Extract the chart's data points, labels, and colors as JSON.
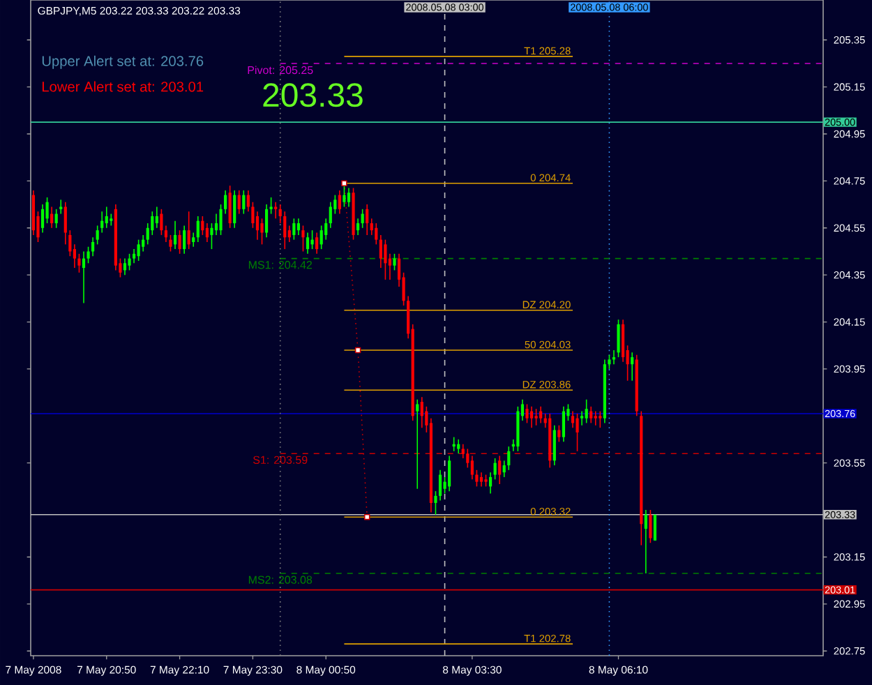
{
  "chart_data": {
    "type": "candlestick",
    "title": "GBPJPY,M5  203.22 203.33 203.22 203.33",
    "annotations": [
      "Upper Alert set at: 203.76",
      "Lower Alert set at: 203.01",
      "203.33"
    ],
    "x": [
      "2008-05-07T19:30",
      "2008-05-07T19:35",
      "2008-05-07T19:40",
      "2008-05-07T19:45",
      "2008-05-07T19:50",
      "2008-05-07T19:55",
      "2008-05-07T20:00",
      "2008-05-07T20:05",
      "2008-05-07T20:10",
      "2008-05-07T20:15",
      "2008-05-07T20:20",
      "2008-05-07T20:25",
      "2008-05-07T20:30",
      "2008-05-07T20:35",
      "2008-05-07T20:40",
      "2008-05-07T20:45",
      "2008-05-07T20:50",
      "2008-05-07T20:55",
      "2008-05-07T21:00",
      "2008-05-07T21:05",
      "2008-05-07T21:10",
      "2008-05-07T21:15",
      "2008-05-07T21:20",
      "2008-05-07T21:25",
      "2008-05-07T21:30",
      "2008-05-07T21:35",
      "2008-05-07T21:40",
      "2008-05-07T21:45",
      "2008-05-07T21:50",
      "2008-05-07T21:55",
      "2008-05-07T22:00",
      "2008-05-07T22:05",
      "2008-05-07T22:10",
      "2008-05-07T22:15",
      "2008-05-07T22:20",
      "2008-05-07T22:25",
      "2008-05-07T22:30",
      "2008-05-07T22:35",
      "2008-05-07T22:40",
      "2008-05-07T22:45",
      "2008-05-07T22:50",
      "2008-05-07T22:55",
      "2008-05-07T23:00",
      "2008-05-07T23:05",
      "2008-05-07T23:10",
      "2008-05-07T23:15",
      "2008-05-07T23:20",
      "2008-05-07T23:25",
      "2008-05-07T23:30",
      "2008-05-07T23:35",
      "2008-05-07T23:40",
      "2008-05-07T23:45",
      "2008-05-07T23:50",
      "2008-05-07T23:55",
      "2008-05-08T00:00",
      "2008-05-08T00:05",
      "2008-05-08T00:10",
      "2008-05-08T00:15",
      "2008-05-08T00:20",
      "2008-05-08T00:25",
      "2008-05-08T00:30",
      "2008-05-08T00:35",
      "2008-05-08T00:40",
      "2008-05-08T00:45",
      "2008-05-08T00:50",
      "2008-05-08T00:55",
      "2008-05-08T01:00",
      "2008-05-08T01:05",
      "2008-05-08T01:10",
      "2008-05-08T01:15",
      "2008-05-08T01:20",
      "2008-05-08T01:25",
      "2008-05-08T01:30",
      "2008-05-08T01:35",
      "2008-05-08T01:40",
      "2008-05-08T01:45",
      "2008-05-08T01:50",
      "2008-05-08T01:55",
      "2008-05-08T02:00",
      "2008-05-08T02:05",
      "2008-05-08T02:10",
      "2008-05-08T02:15",
      "2008-05-08T02:20",
      "2008-05-08T02:25",
      "2008-05-08T02:30",
      "2008-05-08T02:35",
      "2008-05-08T02:40",
      "2008-05-08T02:45",
      "2008-05-08T02:50",
      "2008-05-08T02:55",
      "2008-05-08T03:00",
      "2008-05-08T03:05",
      "2008-05-08T03:10",
      "2008-05-08T03:15",
      "2008-05-08T03:20",
      "2008-05-08T03:25",
      "2008-05-08T03:30",
      "2008-05-08T03:35",
      "2008-05-08T03:40",
      "2008-05-08T03:45",
      "2008-05-08T03:50",
      "2008-05-08T03:55",
      "2008-05-08T04:00",
      "2008-05-08T04:05",
      "2008-05-08T04:10",
      "2008-05-08T04:15",
      "2008-05-08T04:20",
      "2008-05-08T04:25",
      "2008-05-08T04:30",
      "2008-05-08T04:35",
      "2008-05-08T04:40",
      "2008-05-08T04:45",
      "2008-05-08T04:50",
      "2008-05-08T04:55",
      "2008-05-08T05:00",
      "2008-05-08T05:05",
      "2008-05-08T05:10",
      "2008-05-08T05:15",
      "2008-05-08T05:20",
      "2008-05-08T05:25",
      "2008-05-08T05:30",
      "2008-05-08T05:35",
      "2008-05-08T05:40",
      "2008-05-08T05:45",
      "2008-05-08T05:50",
      "2008-05-08T05:55",
      "2008-05-08T06:00",
      "2008-05-08T06:05",
      "2008-05-08T06:10",
      "2008-05-08T06:15",
      "2008-05-08T06:20",
      "2008-05-08T06:25",
      "2008-05-08T06:30",
      "2008-05-08T06:35",
      "2008-05-08T06:40",
      "2008-05-08T06:45",
      "2008-05-08T06:50"
    ],
    "ohlc": [
      [
        204.69,
        204.71,
        204.52,
        204.54
      ],
      [
        204.6,
        204.62,
        204.49,
        204.51
      ],
      [
        204.55,
        204.65,
        204.53,
        204.63
      ],
      [
        204.59,
        204.68,
        204.57,
        204.66
      ],
      [
        204.61,
        204.64,
        204.55,
        204.57
      ],
      [
        204.57,
        204.63,
        204.55,
        204.61
      ],
      [
        204.63,
        204.67,
        204.61,
        204.64
      ],
      [
        204.64,
        204.66,
        204.48,
        204.53
      ],
      [
        204.52,
        204.54,
        204.43,
        204.45
      ],
      [
        204.46,
        204.48,
        204.38,
        204.42
      ],
      [
        204.42,
        204.44,
        204.36,
        204.39
      ],
      [
        204.38,
        204.45,
        204.23,
        204.42
      ],
      [
        204.42,
        204.47,
        204.4,
        204.45
      ],
      [
        204.45,
        204.51,
        204.43,
        204.49
      ],
      [
        204.5,
        204.56,
        204.48,
        204.54
      ],
      [
        204.55,
        204.62,
        204.53,
        204.58
      ],
      [
        204.57,
        204.64,
        204.55,
        204.6
      ],
      [
        204.58,
        204.61,
        204.56,
        204.59
      ],
      [
        204.63,
        204.65,
        204.37,
        204.39
      ],
      [
        204.4,
        204.42,
        204.34,
        204.36
      ],
      [
        204.37,
        204.42,
        204.35,
        204.4
      ],
      [
        204.39,
        204.44,
        204.37,
        204.42
      ],
      [
        204.42,
        204.46,
        204.4,
        204.44
      ],
      [
        204.43,
        204.5,
        204.41,
        204.48
      ],
      [
        204.47,
        204.52,
        204.45,
        204.5
      ],
      [
        204.5,
        204.57,
        204.48,
        204.55
      ],
      [
        204.54,
        204.62,
        204.52,
        204.6
      ],
      [
        204.57,
        204.64,
        204.55,
        204.6
      ],
      [
        204.61,
        204.63,
        204.52,
        204.54
      ],
      [
        204.54,
        204.56,
        204.49,
        204.51
      ],
      [
        204.5,
        204.52,
        204.45,
        204.47
      ],
      [
        204.48,
        204.58,
        204.46,
        204.52
      ],
      [
        204.52,
        204.54,
        204.44,
        204.46
      ],
      [
        204.46,
        204.56,
        204.44,
        204.54
      ],
      [
        204.54,
        204.62,
        204.46,
        204.48
      ],
      [
        204.49,
        204.53,
        204.47,
        204.51
      ],
      [
        204.51,
        204.6,
        204.49,
        204.58
      ],
      [
        204.58,
        204.6,
        204.52,
        204.54
      ],
      [
        204.55,
        204.57,
        204.49,
        204.51
      ],
      [
        204.52,
        204.57,
        204.46,
        204.55
      ],
      [
        204.54,
        204.61,
        204.52,
        204.57
      ],
      [
        204.54,
        204.65,
        204.52,
        204.63
      ],
      [
        204.63,
        204.71,
        204.61,
        204.69
      ],
      [
        204.7,
        204.73,
        204.55,
        204.57
      ],
      [
        204.57,
        204.71,
        204.55,
        204.69
      ],
      [
        204.69,
        204.71,
        204.61,
        204.63
      ],
      [
        204.63,
        204.71,
        204.61,
        204.69
      ],
      [
        204.69,
        204.71,
        204.62,
        204.64
      ],
      [
        204.64,
        204.66,
        204.55,
        204.57
      ],
      [
        204.6,
        204.62,
        204.5,
        204.54
      ],
      [
        204.57,
        204.59,
        204.48,
        204.53
      ],
      [
        204.53,
        204.65,
        204.51,
        204.63
      ],
      [
        204.63,
        204.68,
        204.61,
        204.64
      ],
      [
        204.64,
        204.66,
        204.59,
        204.63
      ],
      [
        204.63,
        204.65,
        204.57,
        204.6
      ],
      [
        204.6,
        204.62,
        204.46,
        204.51
      ],
      [
        204.54,
        204.56,
        204.49,
        204.51
      ],
      [
        204.52,
        204.59,
        204.5,
        204.57
      ],
      [
        204.54,
        204.59,
        204.52,
        204.57
      ],
      [
        204.54,
        204.56,
        204.45,
        204.51
      ],
      [
        204.46,
        204.53,
        204.44,
        204.51
      ],
      [
        204.48,
        204.54,
        204.46,
        204.5
      ],
      [
        204.51,
        204.53,
        204.44,
        204.46
      ],
      [
        204.48,
        204.56,
        204.46,
        204.54
      ],
      [
        204.52,
        204.59,
        204.5,
        204.57
      ],
      [
        204.57,
        204.66,
        204.55,
        204.64
      ],
      [
        204.63,
        204.69,
        204.61,
        204.67
      ],
      [
        204.69,
        204.71,
        204.61,
        204.63
      ],
      [
        204.66,
        204.74,
        204.64,
        204.69
      ],
      [
        204.66,
        204.72,
        204.64,
        204.7
      ],
      [
        204.7,
        204.72,
        204.5,
        204.52
      ],
      [
        204.54,
        204.59,
        204.52,
        204.57
      ],
      [
        204.57,
        204.63,
        204.55,
        204.61
      ],
      [
        204.63,
        204.65,
        204.52,
        204.57
      ],
      [
        204.57,
        204.59,
        204.52,
        204.54
      ],
      [
        204.55,
        204.57,
        204.48,
        204.5
      ],
      [
        204.5,
        204.52,
        204.38,
        204.42
      ],
      [
        204.48,
        204.5,
        204.33,
        204.4
      ],
      [
        204.42,
        204.44,
        204.33,
        204.39
      ],
      [
        204.39,
        204.44,
        204.37,
        204.42
      ],
      [
        204.42,
        204.44,
        204.3,
        204.33
      ],
      [
        204.34,
        204.36,
        204.22,
        204.24
      ],
      [
        204.24,
        204.26,
        204.08,
        204.1
      ],
      [
        204.12,
        204.14,
        203.73,
        203.75
      ],
      [
        203.77,
        203.82,
        203.44,
        203.8
      ],
      [
        203.81,
        203.83,
        203.7,
        203.75
      ],
      [
        203.77,
        203.79,
        203.68,
        203.71
      ],
      [
        203.72,
        203.74,
        203.34,
        203.38
      ],
      [
        203.38,
        203.43,
        203.33,
        203.41
      ],
      [
        203.41,
        203.52,
        203.39,
        203.5
      ],
      [
        203.44,
        203.49,
        203.42,
        203.47
      ],
      [
        203.45,
        203.58,
        203.43,
        203.56
      ],
      [
        203.62,
        203.66,
        203.6,
        203.63
      ],
      [
        203.61,
        203.65,
        203.59,
        203.63
      ],
      [
        203.61,
        203.63,
        203.57,
        203.59
      ],
      [
        203.59,
        203.61,
        203.53,
        203.55
      ],
      [
        203.56,
        203.58,
        203.48,
        203.5
      ],
      [
        203.5,
        203.52,
        203.45,
        203.47
      ],
      [
        203.49,
        203.51,
        203.45,
        203.47
      ],
      [
        203.48,
        203.5,
        203.45,
        203.47
      ],
      [
        203.45,
        203.51,
        203.42,
        203.49
      ],
      [
        203.5,
        203.57,
        203.48,
        203.55
      ],
      [
        203.56,
        203.58,
        203.46,
        203.5
      ],
      [
        203.51,
        203.56,
        203.49,
        203.54
      ],
      [
        203.54,
        203.62,
        203.52,
        203.6
      ],
      [
        203.62,
        203.65,
        203.6,
        203.63
      ],
      [
        203.62,
        203.79,
        203.6,
        203.77
      ],
      [
        203.75,
        203.82,
        203.73,
        203.8
      ],
      [
        203.78,
        203.8,
        203.72,
        203.74
      ],
      [
        203.77,
        203.79,
        203.7,
        203.74
      ],
      [
        203.75,
        203.78,
        203.71,
        203.74
      ],
      [
        203.77,
        203.79,
        203.72,
        203.74
      ],
      [
        203.74,
        203.76,
        203.7,
        203.72
      ],
      [
        203.74,
        203.76,
        203.53,
        203.56
      ],
      [
        203.56,
        203.71,
        203.54,
        203.69
      ],
      [
        203.69,
        203.71,
        203.64,
        203.66
      ],
      [
        203.66,
        203.79,
        203.64,
        203.77
      ],
      [
        203.75,
        203.8,
        203.73,
        203.78
      ],
      [
        203.75,
        203.77,
        203.7,
        203.72
      ],
      [
        203.74,
        203.76,
        203.6,
        203.68
      ],
      [
        203.74,
        203.77,
        203.71,
        203.75
      ],
      [
        203.74,
        203.82,
        203.72,
        203.78
      ],
      [
        203.77,
        203.79,
        203.72,
        203.74
      ],
      [
        203.75,
        203.77,
        203.71,
        203.74
      ],
      [
        203.75,
        203.77,
        203.7,
        203.74
      ],
      [
        203.74,
        203.99,
        203.72,
        203.97
      ],
      [
        203.97,
        204.01,
        203.95,
        203.99
      ],
      [
        203.99,
        204.03,
        203.97,
        204.0
      ],
      [
        204.02,
        204.16,
        204.0,
        204.14
      ],
      [
        204.14,
        204.16,
        203.98,
        204.0
      ],
      [
        204.03,
        204.05,
        203.9,
        203.97
      ],
      [
        203.97,
        204.02,
        203.9,
        204.0
      ],
      [
        203.99,
        204.01,
        203.75,
        203.77
      ],
      [
        203.75,
        203.77,
        203.2,
        203.29
      ],
      [
        203.27,
        203.35,
        203.08,
        203.33
      ],
      [
        203.33,
        203.35,
        203.21,
        203.23
      ],
      [
        203.22,
        203.33,
        203.22,
        203.33
      ]
    ],
    "colors": [
      "#ff0000",
      "#ff0000",
      "#00ff00",
      "#00ff00",
      "#ff0000",
      "#00ff00",
      "#00ff00",
      "#ff0000",
      "#ff0000",
      "#ff0000",
      "#ff0000",
      "#00ff00",
      "#00ff00",
      "#00ff00",
      "#00ff00",
      "#00ff00",
      "#00ff00",
      "#00ff00",
      "#ff0000",
      "#ff0000",
      "#00ff00",
      "#00ff00",
      "#00ff00",
      "#00ff00",
      "#00ff00",
      "#00ff00",
      "#00ff00",
      "#00ff00",
      "#ff0000",
      "#ff0000",
      "#ff0000",
      "#00ff00",
      "#ff0000",
      "#00ff00",
      "#ff0000",
      "#00ff00",
      "#00ff00",
      "#ff0000",
      "#ff0000",
      "#00ff00",
      "#00ff00",
      "#00ff00",
      "#00ff00",
      "#ff0000",
      "#00ff00",
      "#ff0000",
      "#00ff00",
      "#ff0000",
      "#ff0000",
      "#ff0000",
      "#ff0000",
      "#00ff00",
      "#00ff00",
      "#ff0000",
      "#ff0000",
      "#ff0000",
      "#ff0000",
      "#00ff00",
      "#00ff00",
      "#ff0000",
      "#00ff00",
      "#00ff00",
      "#ff0000",
      "#00ff00",
      "#00ff00",
      "#00ff00",
      "#00ff00",
      "#ff0000",
      "#00ff00",
      "#00ff00",
      "#ff0000",
      "#00ff00",
      "#00ff00",
      "#ff0000",
      "#ff0000",
      "#ff0000",
      "#ff0000",
      "#ff0000",
      "#ff0000",
      "#00ff00",
      "#ff0000",
      "#ff0000",
      "#ff0000",
      "#ff0000",
      "#00ff00",
      "#ff0000",
      "#ff0000",
      "#ff0000",
      "#00ff00",
      "#00ff00",
      "#00ff00",
      "#00ff00",
      "#00ff00",
      "#00ff00",
      "#ff0000",
      "#ff0000",
      "#ff0000",
      "#ff0000",
      "#ff0000",
      "#ff0000",
      "#00ff00",
      "#00ff00",
      "#ff0000",
      "#00ff00",
      "#00ff00",
      "#00ff00",
      "#00ff00",
      "#00ff00",
      "#ff0000",
      "#ff0000",
      "#ff0000",
      "#ff0000",
      "#ff0000",
      "#ff0000",
      "#00ff00",
      "#ff0000",
      "#00ff00",
      "#00ff00",
      "#ff0000",
      "#ff0000",
      "#00ff00",
      "#00ff00",
      "#ff0000",
      "#ff0000",
      "#ff0000",
      "#00ff00",
      "#00ff00",
      "#00ff00",
      "#00ff00",
      "#ff0000",
      "#ff0000",
      "#00ff00",
      "#ff0000",
      "#ff0000",
      "#00ff00",
      "#ff0000",
      "#00ff00"
    ],
    "series": [
      {
        "type": "line",
        "name": "Pivot: 205.25",
        "color": "#cc00cc",
        "line_style": "dashed",
        "x": [
          "2008-05-08T00:00",
          "2008-05-08T09:54"
        ],
        "values": [
          205.25,
          205.25
        ]
      },
      {
        "type": "line",
        "name": "MS1: 204.42",
        "color": "#008000",
        "line_style": "dashed",
        "x": [
          "2008-05-08T00:00",
          "2008-05-08T09:54"
        ],
        "values": [
          204.42,
          204.42
        ]
      },
      {
        "type": "line",
        "name": "S1: 203.59",
        "color": "#cc0000",
        "line_style": "dashed",
        "x": [
          "2008-05-08T00:00",
          "2008-05-08T09:54"
        ],
        "values": [
          203.59,
          203.59
        ]
      },
      {
        "type": "line",
        "name": "MS2: 203.08",
        "color": "#008000",
        "line_style": "dashed",
        "x": [
          "2008-05-08T00:00",
          "2008-05-08T09:54"
        ],
        "values": [
          203.08,
          203.08
        ]
      },
      {
        "type": "line",
        "name": "T1  205.28",
        "color": "#e0a000",
        "line_style": "solid",
        "x": [
          "2008-05-08T01:10",
          "2008-05-08T05:20"
        ],
        "values": [
          205.28,
          205.28
        ]
      },
      {
        "type": "line",
        "name": "0  204.74",
        "color": "#e0a000",
        "line_style": "solid",
        "x": [
          "2008-05-08T01:10",
          "2008-05-08T05:20"
        ],
        "values": [
          204.74,
          204.74
        ]
      },
      {
        "type": "line",
        "name": "DZ  204.20",
        "color": "#e0a000",
        "line_style": "solid",
        "x": [
          "2008-05-08T01:10",
          "2008-05-08T05:20"
        ],
        "values": [
          204.2,
          204.2
        ]
      },
      {
        "type": "line",
        "name": "50  204.03",
        "color": "#e0a000",
        "line_style": "solid",
        "x": [
          "2008-05-08T01:10",
          "2008-05-08T05:20"
        ],
        "values": [
          204.03,
          204.03
        ]
      },
      {
        "type": "line",
        "name": "DZ  203.86",
        "color": "#e0a000",
        "line_style": "solid",
        "x": [
          "2008-05-08T01:10",
          "2008-05-08T05:20"
        ],
        "values": [
          203.86,
          203.86
        ]
      },
      {
        "type": "line",
        "name": "0  203.32",
        "color": "#e0a000",
        "line_style": "solid",
        "x": [
          "2008-05-08T01:10",
          "2008-05-08T05:20"
        ],
        "values": [
          203.32,
          203.32
        ]
      },
      {
        "type": "line",
        "name": "T1  202.78",
        "color": "#e0a000",
        "line_style": "solid",
        "x": [
          "2008-05-08T01:10",
          "2008-05-08T05:20"
        ],
        "values": [
          202.78,
          202.78
        ]
      },
      {
        "type": "line",
        "color": "#cc0000",
        "line_style": "dotted",
        "marker": "square",
        "x": [
          "2008-05-08T01:10",
          "2008-05-08T01:25",
          "2008-05-08T01:35"
        ],
        "values": [
          204.74,
          204.03,
          203.32
        ]
      }
    ],
    "ref_lines": [
      {
        "axis": "y",
        "value": 205.0,
        "label": "205.00",
        "color": "#33cc99",
        "line_style": "solid"
      },
      {
        "axis": "y",
        "value": 203.76,
        "label": "203.76",
        "color": "#0000cc",
        "line_style": "solid"
      },
      {
        "axis": "y",
        "value": 203.33,
        "label": "203.33",
        "color": "#c0c0c0",
        "line_style": "solid"
      },
      {
        "axis": "y",
        "value": 203.01,
        "label": "203.01",
        "color": "#cc0000",
        "line_style": "solid"
      },
      {
        "axis": "x",
        "value": "2008-05-08T00:00",
        "color": "#808080",
        "line_style": "dotted"
      },
      {
        "axis": "x",
        "value": "2008-05-08T03:00",
        "label": "2008.05.08 03:00",
        "color": "#c0c0c0",
        "line_style": "dashed"
      },
      {
        "axis": "x",
        "value": "2008-05-08T06:00",
        "label": "2008.05.08 06:00",
        "color": "#3399ff",
        "line_style": "dotted"
      }
    ],
    "xlim": [
      "2008-05-07T19:27",
      "2008-05-08T09:54"
    ],
    "xticks": [
      {
        "value": "2008-05-07T19:30",
        "label": "7 May 2008"
      },
      {
        "value": "2008-05-07T20:50",
        "label": "7 May 20:50"
      },
      {
        "value": "2008-05-07T22:10",
        "label": "7 May 22:10"
      },
      {
        "value": "2008-05-07T23:30",
        "label": "7 May 23:30"
      },
      {
        "value": "2008-05-08T00:50",
        "label": "8 May 00:50"
      },
      {
        "value": "2008-05-08T03:30",
        "label": "8 May 03:30"
      },
      {
        "value": "2008-05-08T06:10",
        "label": "8 May 06:10"
      }
    ],
    "ylim": [
      202.73,
      205.52
    ],
    "yticks": [
      205.35,
      205.15,
      204.95,
      204.75,
      204.55,
      204.35,
      204.15,
      203.95,
      203.55,
      203.15,
      202.95,
      202.75
    ]
  }
}
